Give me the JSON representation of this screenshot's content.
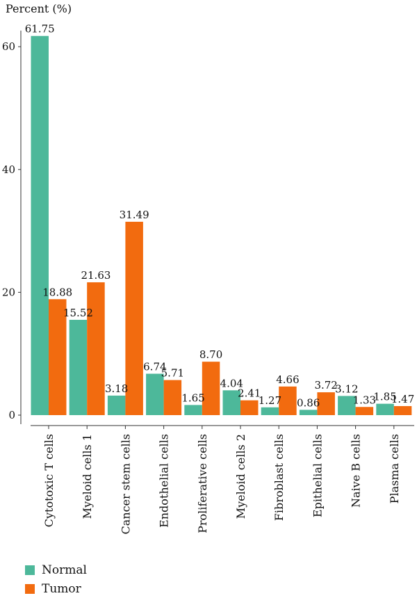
{
  "chart_data": {
    "type": "bar",
    "ylabel": "Percent (%)",
    "ylim": [
      0,
      65
    ],
    "yticks": [
      0,
      20,
      40,
      60
    ],
    "categories": [
      "Cytotoxic T cells",
      "Myeloid cells 1",
      "Cancer stem cells",
      "Endothelial cells",
      "Proliferative cells",
      "Myeloid cells 2",
      "Fibroblast cells",
      "Epithelial cells",
      "Naive B cells",
      "Plasma cells"
    ],
    "series": [
      {
        "name": "Normal",
        "color": "#4db89a",
        "values": [
          61.75,
          15.52,
          3.18,
          6.74,
          1.65,
          4.04,
          1.27,
          0.86,
          3.12,
          1.85
        ],
        "labels": [
          "61.75",
          "15.52",
          "3.18",
          "6.74",
          "1.65",
          "4.04",
          "1.27",
          "0.86",
          "3.12",
          "1.85"
        ]
      },
      {
        "name": "Tumor",
        "color": "#f26b0f",
        "values": [
          18.88,
          21.63,
          31.49,
          5.71,
          8.7,
          2.41,
          4.66,
          3.72,
          1.33,
          1.47
        ],
        "labels": [
          "18.88",
          "21.63",
          "31.49",
          "5.71",
          "8.70",
          "2.41",
          "4.66",
          "3.72",
          "1.33",
          "1.47"
        ]
      }
    ],
    "legend_position": "bottom-left",
    "grid": false
  }
}
